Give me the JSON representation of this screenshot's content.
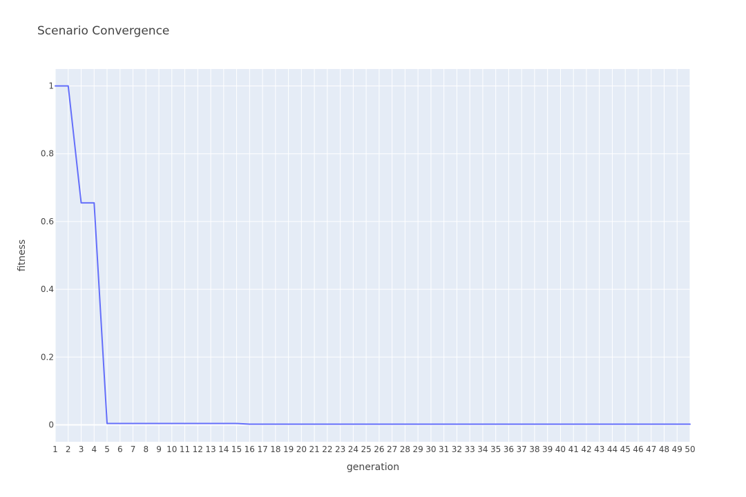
{
  "chart_data": {
    "type": "line",
    "title": "Scenario Convergence",
    "xlabel": "generation",
    "ylabel": "fitness",
    "x": [
      1,
      2,
      3,
      4,
      5,
      6,
      7,
      8,
      9,
      10,
      11,
      12,
      13,
      14,
      15,
      16,
      17,
      18,
      19,
      20,
      21,
      22,
      23,
      24,
      25,
      26,
      27,
      28,
      29,
      30,
      31,
      32,
      33,
      34,
      35,
      36,
      37,
      38,
      39,
      40,
      41,
      42,
      43,
      44,
      45,
      46,
      47,
      48,
      49,
      50
    ],
    "series": [
      {
        "values": [
          1,
          1,
          0.655,
          0.655,
          0.004,
          0.004,
          0.004,
          0.004,
          0.004,
          0.004,
          0.004,
          0.004,
          0.004,
          0.004,
          0.004,
          0.002,
          0.002,
          0.002,
          0.002,
          0.002,
          0.002,
          0.002,
          0.002,
          0.002,
          0.002,
          0.002,
          0.002,
          0.002,
          0.002,
          0.002,
          0.002,
          0.002,
          0.002,
          0.002,
          0.002,
          0.002,
          0.002,
          0.002,
          0.002,
          0.002,
          0.002,
          0.002,
          0.002,
          0.002,
          0.002,
          0.002,
          0.002,
          0.002,
          0.002,
          0.002
        ],
        "color": "#636efa"
      }
    ],
    "xlim": [
      1,
      50
    ],
    "ylim": [
      -0.05,
      1.05
    ],
    "yticks": [
      0,
      0.2,
      0.4,
      0.6,
      0.8,
      1
    ],
    "ytick_labels": [
      "0",
      "0.2",
      "0.4",
      "0.6",
      "0.8",
      "1"
    ],
    "xtick_labels": [
      "1",
      "2",
      "3",
      "4",
      "5",
      "6",
      "7",
      "8",
      "9",
      "10",
      "11",
      "12",
      "13",
      "14",
      "15",
      "16",
      "17",
      "18",
      "19",
      "20",
      "21",
      "22",
      "23",
      "24",
      "25",
      "26",
      "27",
      "28",
      "29",
      "30",
      "31",
      "32",
      "33",
      "34",
      "35",
      "36",
      "37",
      "38",
      "39",
      "40",
      "41",
      "42",
      "43",
      "44",
      "45",
      "46",
      "47",
      "48",
      "49",
      "50"
    ],
    "grid": true,
    "plot_background": "#e5ecf6",
    "grid_color": "#ffffff"
  }
}
